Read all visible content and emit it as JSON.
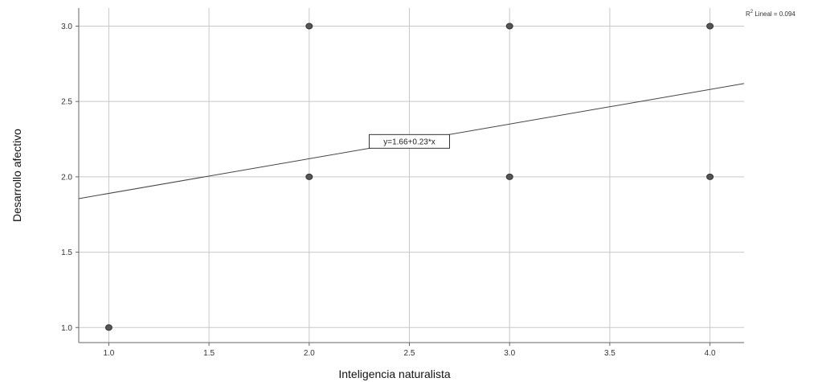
{
  "chart_data": {
    "type": "scatter",
    "xlabel": "Inteligencia naturalista",
    "ylabel": "Desarrollo afectivo",
    "xlim": [
      0.85,
      4.17
    ],
    "ylim": [
      0.9,
      3.12
    ],
    "xticks": [
      1.0,
      1.5,
      2.0,
      2.5,
      3.0,
      3.5,
      4.0
    ],
    "yticks": [
      1.0,
      1.5,
      2.0,
      2.5,
      3.0
    ],
    "xtick_labels": [
      "1.0",
      "1.5",
      "2.0",
      "2.5",
      "3.0",
      "3.5",
      "4.0"
    ],
    "ytick_labels": [
      "1.0",
      "1.5",
      "2.0",
      "2.5",
      "3.0"
    ],
    "grid": true,
    "points": [
      {
        "x": 1.0,
        "y": 1.0
      },
      {
        "x": 2.0,
        "y": 2.0
      },
      {
        "x": 2.0,
        "y": 3.0
      },
      {
        "x": 3.0,
        "y": 2.0
      },
      {
        "x": 3.0,
        "y": 3.0
      },
      {
        "x": 4.0,
        "y": 2.0
      },
      {
        "x": 4.0,
        "y": 3.0
      }
    ],
    "fit_line": {
      "intercept": 1.66,
      "slope": 0.23
    },
    "equation_label": "y=1.66+0.23*x",
    "r2_label": {
      "prefix": "R",
      "sup": "2",
      "rest": " Lineal = 0.094"
    },
    "colors": {
      "marker": "#555555",
      "marker_edge": "#333333",
      "fit_line": "#444444",
      "grid": "#c8c8c8",
      "axis": "#666666"
    }
  }
}
